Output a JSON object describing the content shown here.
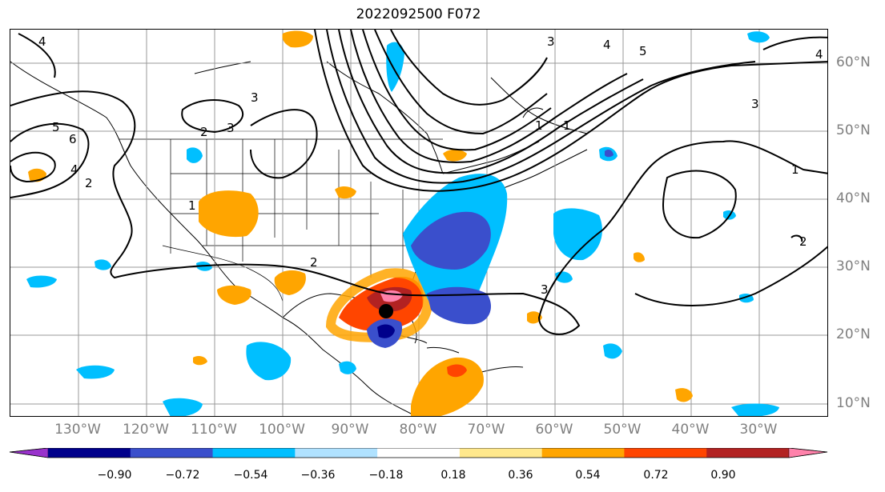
{
  "title": "2022092500 F072",
  "lon_labels": [
    "130°W",
    "120°W",
    "110°W",
    "100°W",
    "90°W",
    "80°W",
    "70°W",
    "60°W",
    "50°W",
    "40°W",
    "30°W"
  ],
  "lat_labels": [
    "60°N",
    "50°N",
    "40°N",
    "30°N",
    "20°N",
    "10°N"
  ],
  "contour_labels": [
    "4",
    "3",
    "4",
    "5",
    "4",
    "3",
    "2",
    "3",
    "5",
    "6",
    "4",
    "2",
    "1",
    "2",
    "3",
    "1",
    "1",
    "1",
    "3",
    "2"
  ],
  "colorbar": {
    "ticks": [
      "−0.90",
      "−0.72",
      "−0.54",
      "−0.36",
      "−0.18",
      "0.18",
      "0.36",
      "0.54",
      "0.72",
      "0.90"
    ],
    "colors": [
      "#9932cc",
      "#00008b",
      "#3a4fcc",
      "#00bfff",
      "#b0e2ff",
      "#ffffff",
      "#ffe88c",
      "#ffa500",
      "#ff4500",
      "#b22222",
      "#ff82ab"
    ]
  },
  "storm_marker": "storm-center"
}
